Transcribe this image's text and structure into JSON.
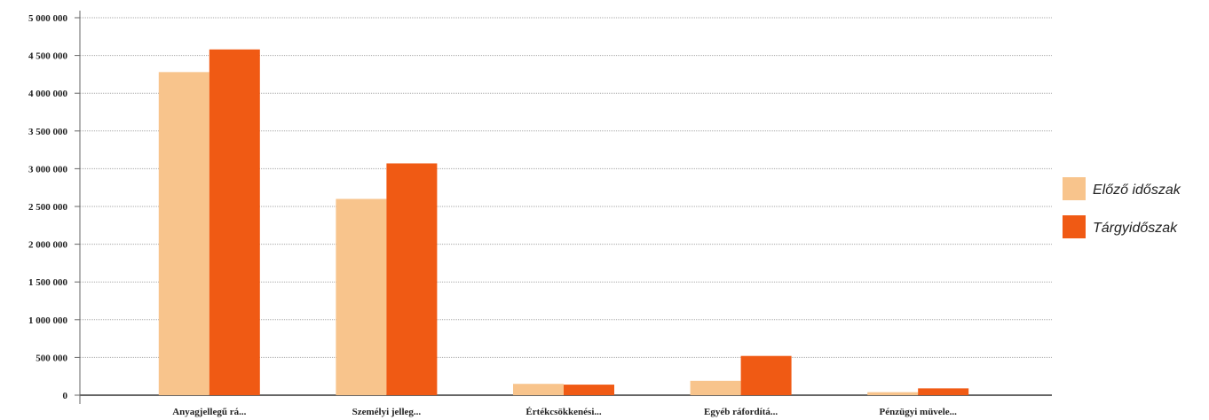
{
  "chart_data": {
    "type": "bar",
    "categories": [
      "Anyagjellegű rá...",
      "Személyi jelleg...",
      "Értékcsökkenési...",
      "Egyéb ráfordítá...",
      "Pénzügyi müvele..."
    ],
    "series": [
      {
        "name": "Előző időszak",
        "color": "#f8c48c",
        "values": [
          4280000,
          2600000,
          150000,
          190000,
          40000
        ]
      },
      {
        "name": "Tárgyidőszak",
        "color": "#f05a14",
        "values": [
          4580000,
          3070000,
          140000,
          520000,
          90000
        ]
      }
    ],
    "ylim": [
      0,
      5000000
    ],
    "yticks": [
      0,
      {
        "value": 500000,
        "label": "500 000"
      },
      {
        "value": 1000000,
        "label": "1 000 000"
      },
      {
        "value": 1500000,
        "label": "1 500 000"
      },
      {
        "value": 2000000,
        "label": "2 000 000"
      },
      {
        "value": 2500000,
        "label": "2 500 000"
      },
      {
        "value": 3000000,
        "label": "3 000 000"
      },
      {
        "value": 3500000,
        "label": "3 500 000"
      },
      {
        "value": 4000000,
        "label": "4 000 000"
      },
      {
        "value": 4500000,
        "label": "4 500 000"
      },
      {
        "value": 5000000,
        "label": "5 000 000"
      }
    ],
    "grid": true,
    "legend": "right"
  }
}
